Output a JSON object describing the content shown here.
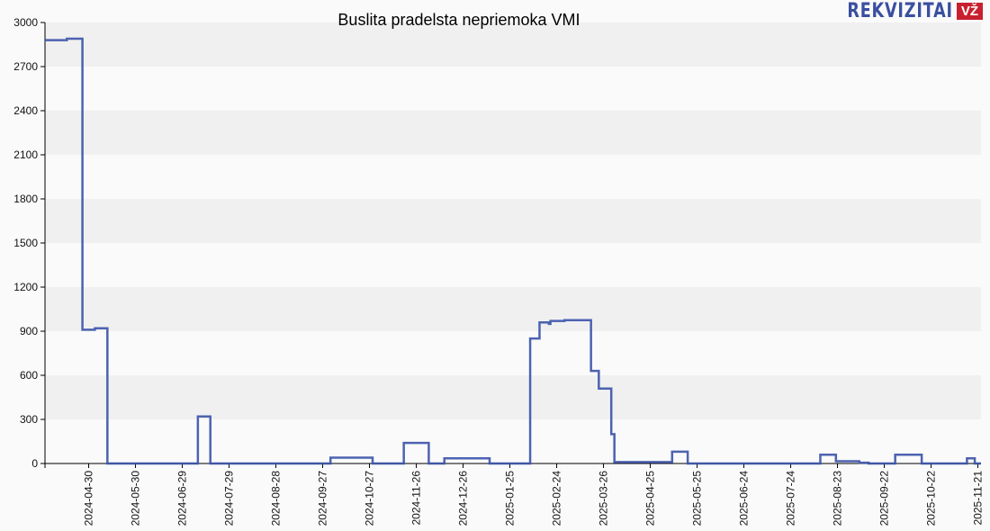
{
  "chart_data": {
    "type": "line",
    "title": "Buslita pradelsta nepriemoka VMI",
    "xlabel": "",
    "ylabel": "",
    "ylim": [
      0,
      3000
    ],
    "yticks": [
      0,
      300,
      600,
      900,
      1200,
      1500,
      1800,
      2100,
      2400,
      2700,
      3000
    ],
    "xlim": [
      "2024-04-02",
      "2025-11-23"
    ],
    "xticks": [
      "2024-04-30",
      "2024-05-30",
      "2024-06-29",
      "2024-07-29",
      "2024-08-28",
      "2024-09-27",
      "2024-10-27",
      "2024-11-26",
      "2024-12-26",
      "2025-01-25",
      "2025-02-24",
      "2025-03-26",
      "2025-04-25",
      "2025-05-25",
      "2025-06-24",
      "2025-07-24",
      "2025-08-23",
      "2025-09-22",
      "2025-10-22",
      "2025-11-21"
    ],
    "grid": true,
    "line_color": "#3a52a8",
    "step": true,
    "series": [
      {
        "points": [
          [
            "2024-04-02",
            2880
          ],
          [
            "2024-04-16",
            2890
          ],
          [
            "2024-04-26",
            910
          ],
          [
            "2024-05-04",
            920
          ],
          [
            "2024-05-12",
            0
          ],
          [
            "2024-07-09",
            320
          ],
          [
            "2024-07-17",
            0
          ],
          [
            "2024-10-02",
            40
          ],
          [
            "2024-10-29",
            0
          ],
          [
            "2024-11-18",
            140
          ],
          [
            "2024-12-04",
            0
          ],
          [
            "2024-12-14",
            35
          ],
          [
            "2025-01-12",
            0
          ],
          [
            "2025-02-07",
            850
          ],
          [
            "2025-02-13",
            960
          ],
          [
            "2025-02-19",
            950
          ],
          [
            "2025-02-20",
            970
          ],
          [
            "2025-03-01",
            975
          ],
          [
            "2025-03-18",
            630
          ],
          [
            "2025-03-23",
            510
          ],
          [
            "2025-03-31",
            200
          ],
          [
            "2025-04-02",
            10
          ],
          [
            "2025-05-09",
            80
          ],
          [
            "2025-05-19",
            0
          ],
          [
            "2025-08-12",
            60
          ],
          [
            "2025-08-22",
            15
          ],
          [
            "2025-09-06",
            5
          ],
          [
            "2025-09-12",
            0
          ],
          [
            "2025-09-29",
            60
          ],
          [
            "2025-10-16",
            0
          ],
          [
            "2025-11-14",
            35
          ],
          [
            "2025-11-19",
            0
          ],
          [
            "2025-11-23",
            0
          ]
        ]
      }
    ]
  },
  "logo": {
    "text": "REKVIZITAI",
    "badge": "VŽ"
  }
}
